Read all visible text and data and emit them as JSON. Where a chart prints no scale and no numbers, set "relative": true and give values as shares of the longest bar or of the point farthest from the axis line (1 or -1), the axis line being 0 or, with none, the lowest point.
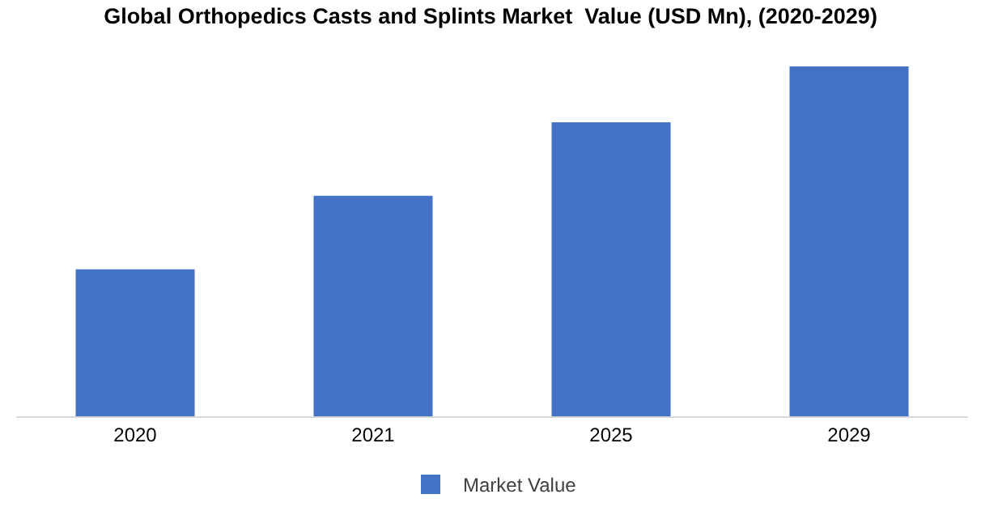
{
  "chart_data": {
    "type": "bar",
    "title": "Global Orthopedics Casts and Splints Market  Value (USD Mn), (2020-2029)",
    "categories": [
      "2020",
      "2021",
      "2025",
      "2029"
    ],
    "relative": true,
    "series": [
      {
        "name": "Market Value",
        "color": "#4472c4",
        "values": [
          0.42,
          0.63,
          0.84,
          1
        ]
      }
    ],
    "grid": false,
    "legend": "bottom"
  }
}
